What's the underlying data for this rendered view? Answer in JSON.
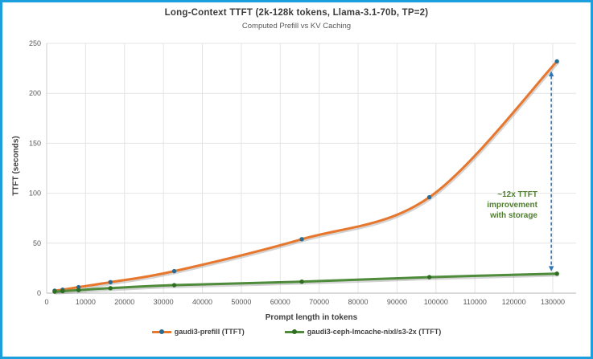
{
  "frame": {
    "border_color": "#1ba0dd",
    "background": "#ffffff"
  },
  "chart_data": {
    "type": "line",
    "title": "Long-Context TTFT (2k-128k tokens, Llama-3.1-70b, TP=2)",
    "subtitle": "Computed Prefill vs KV Caching",
    "xlabel": "Prompt length in tokens",
    "ylabel": "TTFT (seconds)",
    "xlim": [
      0,
      136000
    ],
    "ylim": [
      0,
      250
    ],
    "x_ticks": [
      0,
      10000,
      20000,
      30000,
      40000,
      50000,
      60000,
      70000,
      80000,
      90000,
      100000,
      110000,
      120000,
      130000
    ],
    "y_ticks": [
      0,
      50,
      100,
      150,
      200,
      250
    ],
    "grid": true,
    "legend_position": "bottom",
    "x": [
      2048,
      4096,
      8192,
      16384,
      32768,
      65536,
      98304,
      131072
    ],
    "series": [
      {
        "name": "gaudi3-prefill (TTFT)",
        "color": "#e8772e",
        "marker_color": "#2a6b91",
        "values": [
          2.5,
          3.5,
          6,
          11,
          22,
          54,
          96,
          232
        ]
      },
      {
        "name": "gaudi3-ceph-lmcache-nixl/s3-2x (TTFT)",
        "color": "#4e8b3a",
        "marker_color": "#2f6e22",
        "values": [
          1.5,
          2,
          3,
          5,
          8,
          11.5,
          16,
          19.5
        ]
      }
    ],
    "annotation": {
      "lines": [
        "~12x TTFT",
        "improvement",
        "with storage"
      ],
      "text_color": "#4e7e2e",
      "arrow_color": "#2e75b6",
      "x": 131072,
      "y_top": 219,
      "y_bottom": 25
    },
    "colors": {
      "gridline": "#e4e4e4",
      "y_axis_line": "#cccccc",
      "x_axis_line": "#b7b7b7",
      "tick_label": "#595959"
    }
  }
}
